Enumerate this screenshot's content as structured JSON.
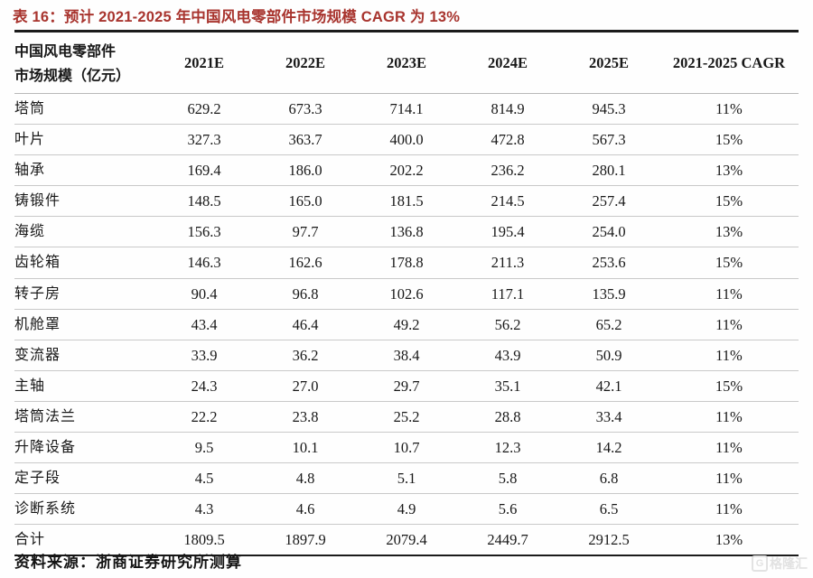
{
  "title": "表 16：预计 2021-2025 年中国风电零部件市场规模 CAGR 为 13%",
  "table": {
    "header": {
      "label_line1": "中国风电零部件",
      "label_line2": "市场规模（亿元）",
      "columns": [
        "2021E",
        "2022E",
        "2023E",
        "2024E",
        "2025E",
        "2021-2025 CAGR"
      ]
    },
    "rows": [
      {
        "label": "塔筒",
        "values": [
          "629.2",
          "673.3",
          "714.1",
          "814.9",
          "945.3",
          "11%"
        ]
      },
      {
        "label": "叶片",
        "values": [
          "327.3",
          "363.7",
          "400.0",
          "472.8",
          "567.3",
          "15%"
        ]
      },
      {
        "label": "轴承",
        "values": [
          "169.4",
          "186.0",
          "202.2",
          "236.2",
          "280.1",
          "13%"
        ]
      },
      {
        "label": "铸锻件",
        "values": [
          "148.5",
          "165.0",
          "181.5",
          "214.5",
          "257.4",
          "15%"
        ]
      },
      {
        "label": "海缆",
        "values": [
          "156.3",
          "97.7",
          "136.8",
          "195.4",
          "254.0",
          "13%"
        ]
      },
      {
        "label": "齿轮箱",
        "values": [
          "146.3",
          "162.6",
          "178.8",
          "211.3",
          "253.6",
          "15%"
        ]
      },
      {
        "label": "转子房",
        "values": [
          "90.4",
          "96.8",
          "102.6",
          "117.1",
          "135.9",
          "11%"
        ]
      },
      {
        "label": "机舱罩",
        "values": [
          "43.4",
          "46.4",
          "49.2",
          "56.2",
          "65.2",
          "11%"
        ]
      },
      {
        "label": "变流器",
        "values": [
          "33.9",
          "36.2",
          "38.4",
          "43.9",
          "50.9",
          "11%"
        ]
      },
      {
        "label": "主轴",
        "values": [
          "24.3",
          "27.0",
          "29.7",
          "35.1",
          "42.1",
          "15%"
        ]
      },
      {
        "label": "塔筒法兰",
        "values": [
          "22.2",
          "23.8",
          "25.2",
          "28.8",
          "33.4",
          "11%"
        ]
      },
      {
        "label": "升降设备",
        "values": [
          "9.5",
          "10.1",
          "10.7",
          "12.3",
          "14.2",
          "11%"
        ]
      },
      {
        "label": "定子段",
        "values": [
          "4.5",
          "4.8",
          "5.1",
          "5.8",
          "6.8",
          "11%"
        ]
      },
      {
        "label": "诊断系统",
        "values": [
          "4.3",
          "4.6",
          "4.9",
          "5.6",
          "6.5",
          "11%"
        ]
      },
      {
        "label": "合计",
        "values": [
          "1809.5",
          "1897.9",
          "2079.4",
          "2449.7",
          "2912.5",
          "13%"
        ]
      }
    ]
  },
  "source_note": "资料来源：浙商证券研究所测算",
  "watermark": {
    "logo_letter": "G",
    "text": "格隆汇"
  },
  "colors": {
    "title_red": "#a8342e",
    "line_dark": "#1b1b1b",
    "line_light": "#c9c9c9",
    "watermark_gray": "#e2e2e2"
  }
}
